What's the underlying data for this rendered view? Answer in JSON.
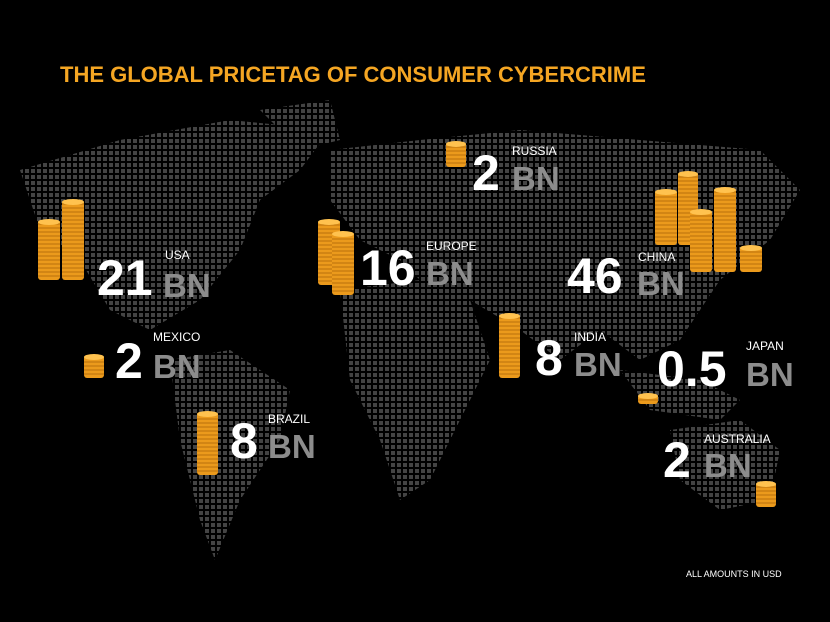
{
  "title": "THE GLOBAL PRICETAG OF CONSUMER CYBERCRIME",
  "regions": [
    {
      "name": "USA",
      "amount": 21,
      "unit": "BN"
    },
    {
      "name": "MEXICO",
      "amount": 2,
      "unit": "BN"
    },
    {
      "name": "BRAZIL",
      "amount": 8,
      "unit": "BN"
    },
    {
      "name": "EUROPE",
      "amount": 16,
      "unit": "BN"
    },
    {
      "name": "RUSSIA",
      "amount": 2,
      "unit": "BN"
    },
    {
      "name": "CHINA",
      "amount": 46,
      "unit": "BN"
    },
    {
      "name": "INDIA",
      "amount": 8,
      "unit": "BN"
    },
    {
      "name": "JAPAN",
      "amount": 0.5,
      "unit": "BN"
    },
    {
      "name": "AUSTRALIA",
      "amount": 2,
      "unit": "BN"
    }
  ],
  "note": "ALL AMOUNTS IN USD"
}
